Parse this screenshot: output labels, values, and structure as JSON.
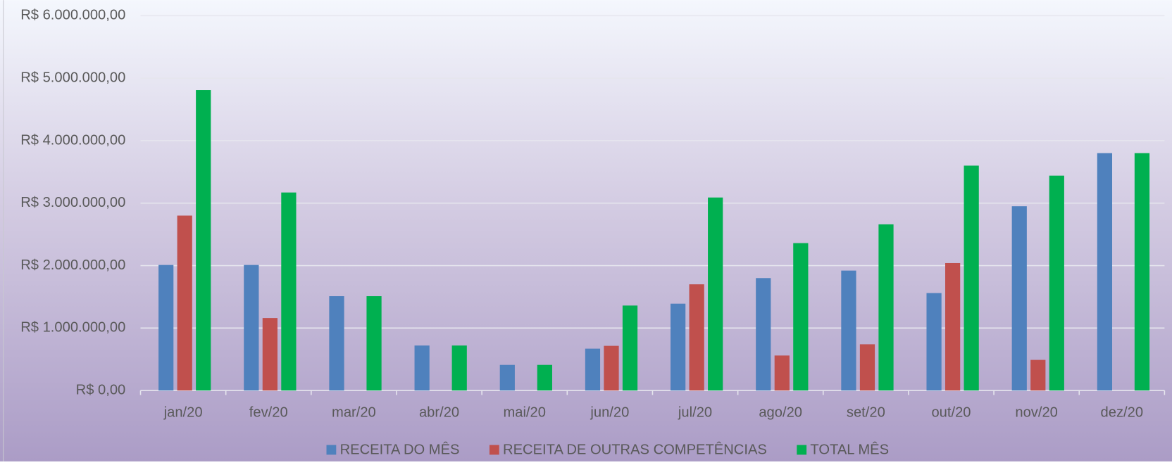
{
  "chart_data": {
    "type": "bar",
    "categories": [
      "jan/20",
      "fev/20",
      "mar/20",
      "abr/20",
      "mai/20",
      "jun/20",
      "jul/20",
      "ago/20",
      "set/20",
      "out/20",
      "nov/20",
      "dez/20"
    ],
    "series": [
      {
        "name": "RECEITA DO MÊS",
        "color": "#4f81bd",
        "values": [
          2010000,
          2010000,
          1510000,
          720000,
          410000,
          670000,
          1390000,
          1800000,
          1920000,
          1560000,
          2950000,
          3800000
        ]
      },
      {
        "name": "RECEITA DE OUTRAS COMPETÊNCIAS",
        "color": "#c0504d",
        "values": [
          2800000,
          1160000,
          0,
          0,
          0,
          715000,
          1700000,
          560000,
          740000,
          2040000,
          490000,
          0
        ]
      },
      {
        "name": "TOTAL MÊS",
        "color": "#00b050",
        "values": [
          4810000,
          3170000,
          1510000,
          720000,
          410000,
          1360000,
          3090000,
          2360000,
          2660000,
          3600000,
          3440000,
          3800000
        ]
      }
    ],
    "ylim": [
      0,
      6000000
    ],
    "yticks": [
      {
        "value": 0,
        "label": "R$ 0,00"
      },
      {
        "value": 1000000,
        "label": "R$ 1.000.000,00"
      },
      {
        "value": 2000000,
        "label": "R$ 2.000.000,00"
      },
      {
        "value": 3000000,
        "label": "R$ 3.000.000,00"
      },
      {
        "value": 4000000,
        "label": "R$ 4.000.000,00"
      },
      {
        "value": 5000000,
        "label": "R$ 5.000.000,00"
      },
      {
        "value": 6000000,
        "label": "R$ 6.000.000,00"
      }
    ],
    "grid": true,
    "legend": "bottom"
  }
}
